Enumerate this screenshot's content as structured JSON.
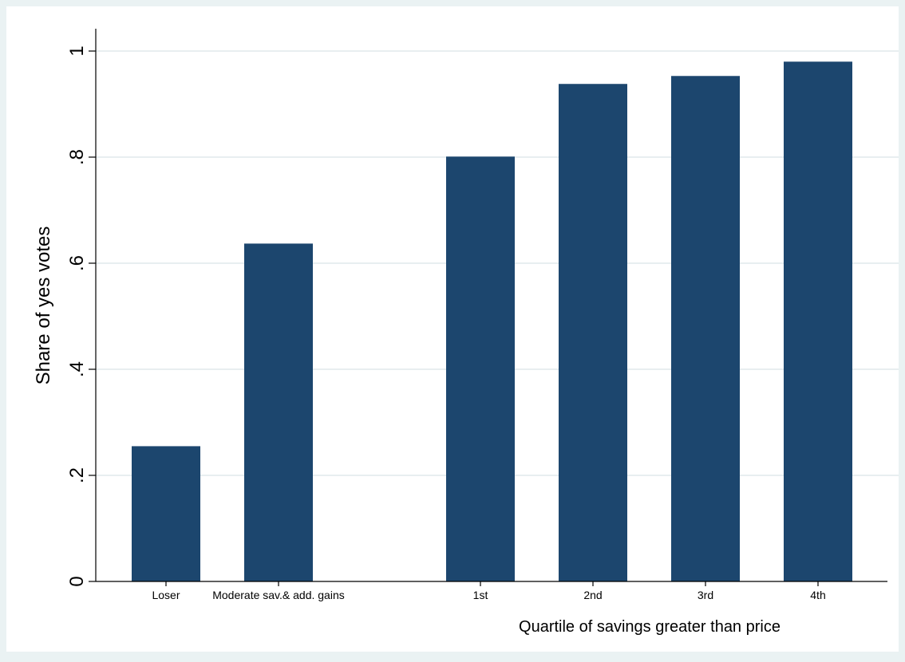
{
  "chart_data": {
    "type": "bar",
    "categories": [
      "Loser",
      "Moderate sav.& add. gains",
      "1st",
      "2nd",
      "3rd",
      "4th"
    ],
    "values": [
      0.255,
      0.637,
      0.801,
      0.938,
      0.953,
      0.98
    ],
    "xlabel": "Quartile of savings greater than price",
    "ylabel": "Share of yes votes",
    "ylim": [
      0,
      1
    ],
    "yticks": [
      0,
      0.2,
      0.4,
      0.6,
      0.8,
      1
    ],
    "ytick_labels": [
      "0",
      ".2",
      ".4",
      ".6",
      ".8",
      "1"
    ],
    "grid": true,
    "colors": {
      "bar": "#1c466e",
      "plot_background": "#ffffff",
      "outer_background": "#eaf2f3",
      "gridline": "#e8eef0",
      "axis": "#000000"
    }
  }
}
